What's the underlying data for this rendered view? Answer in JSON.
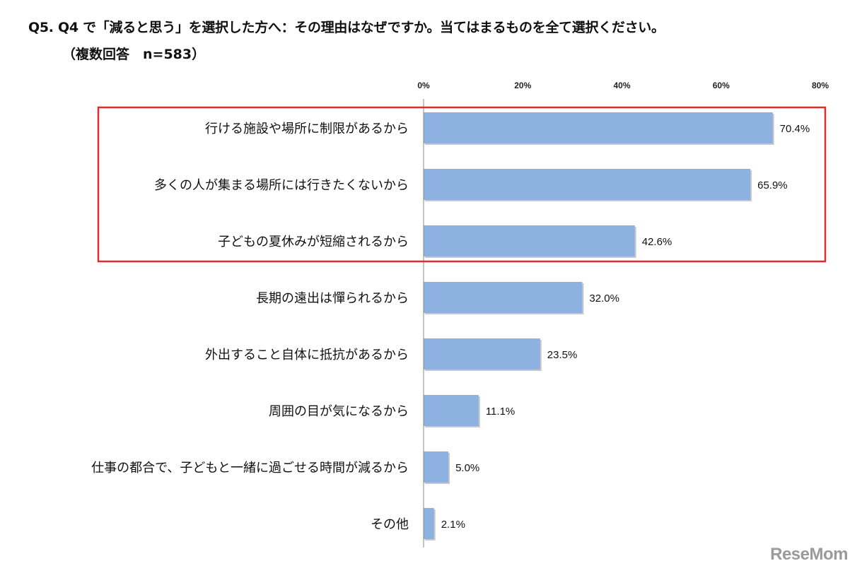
{
  "title": "Q5. Q4 で「減ると思う」を選択した方へ：その理由はなぜですか。当てはまるものを全て選択ください。",
  "subtitle": "（複数回答　n=583）",
  "logo": "ReseMom",
  "colors": {
    "bar": "#8db1e0",
    "bar_shadow": "#c9c9c9",
    "highlight": "#e32b2b",
    "axis": "#888888"
  },
  "chart_data": {
    "type": "bar",
    "orientation": "horizontal",
    "xlim": [
      0,
      80
    ],
    "ticks": [
      "0%",
      "20%",
      "40%",
      "60%",
      "80%"
    ],
    "tick_values": [
      0,
      20,
      40,
      60,
      80
    ],
    "categories": [
      "行ける施設や場所に制限があるから",
      "多くの人が集まる場所には行きたくないから",
      "子どもの夏休みが短縮されるから",
      "長期の遠出は憚られるから",
      "外出すること自体に抵抗があるから",
      "周囲の目が気になるから",
      "仕事の都合で、子どもと一緒に過ごせる時間が減るから",
      "その他"
    ],
    "values": [
      70.4,
      65.9,
      42.6,
      32.0,
      23.5,
      11.1,
      5.0,
      2.1
    ],
    "value_labels": [
      "70.4%",
      "65.9%",
      "42.6%",
      "32.0%",
      "23.5%",
      "11.1%",
      "5.0%",
      "2.1%"
    ],
    "highlighted_categories": [
      0,
      1,
      2
    ],
    "grid": false
  }
}
